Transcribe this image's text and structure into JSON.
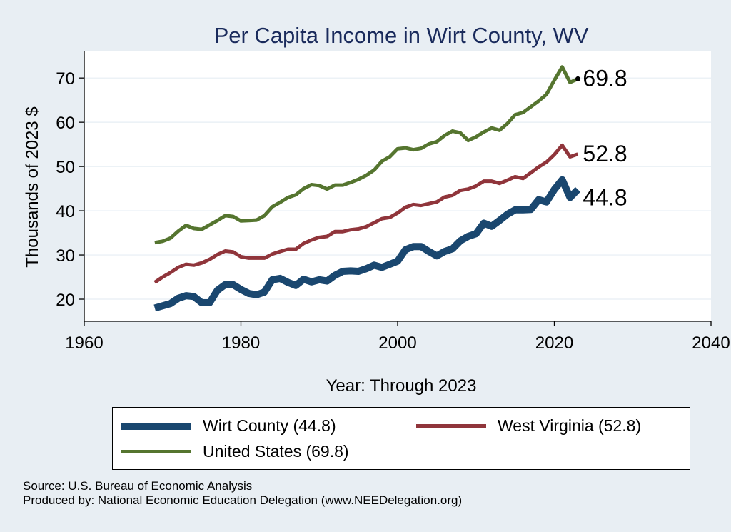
{
  "chart_data": {
    "type": "line",
    "title": "Per Capita Income in Wirt County, WV",
    "xlabel": "Year: Through 2023",
    "ylabel": "Thousands of 2023 $",
    "xlim": [
      1960,
      2040
    ],
    "ylim": [
      15,
      76
    ],
    "xticks": [
      1960,
      1980,
      2000,
      2020,
      2040
    ],
    "yticks": [
      20,
      30,
      40,
      50,
      60,
      70
    ],
    "grid": "horizontal",
    "x": [
      1969,
      1970,
      1971,
      1972,
      1973,
      1974,
      1975,
      1976,
      1977,
      1978,
      1979,
      1980,
      1981,
      1982,
      1983,
      1984,
      1985,
      1986,
      1987,
      1988,
      1989,
      1990,
      1991,
      1992,
      1993,
      1994,
      1995,
      1996,
      1997,
      1998,
      1999,
      2000,
      2001,
      2002,
      2003,
      2004,
      2005,
      2006,
      2007,
      2008,
      2009,
      2010,
      2011,
      2012,
      2013,
      2014,
      2015,
      2016,
      2017,
      2018,
      2019,
      2020,
      2021,
      2022,
      2023
    ],
    "series": [
      {
        "name": "Wirt County (44.8)",
        "color": "#1a476f",
        "width": 10,
        "end_label": "44.8",
        "values": [
          18.0,
          18.5,
          19.0,
          20.2,
          20.8,
          20.6,
          19.2,
          19.2,
          22.0,
          23.3,
          23.3,
          22.2,
          21.3,
          21.0,
          21.6,
          24.4,
          24.7,
          23.8,
          23.1,
          24.5,
          23.9,
          24.4,
          24.1,
          25.4,
          26.3,
          26.4,
          26.3,
          26.9,
          27.7,
          27.2,
          27.9,
          28.6,
          31.2,
          31.9,
          31.9,
          30.8,
          29.8,
          30.8,
          31.4,
          33.2,
          34.2,
          34.8,
          37.2,
          36.5,
          37.8,
          39.2,
          40.2,
          40.2,
          40.3,
          42.5,
          42.0,
          44.8,
          47.0,
          43.0,
          44.8
        ]
      },
      {
        "name": "West Virginia (52.8)",
        "color": "#90353b",
        "width": 5,
        "end_label": "52.8",
        "values": [
          23.8,
          25.0,
          26.0,
          27.2,
          27.9,
          27.7,
          28.2,
          29.0,
          30.1,
          30.9,
          30.7,
          29.6,
          29.3,
          29.3,
          29.3,
          30.2,
          30.8,
          31.3,
          31.3,
          32.6,
          33.4,
          34.0,
          34.2,
          35.3,
          35.3,
          35.7,
          35.9,
          36.4,
          37.3,
          38.2,
          38.5,
          39.5,
          40.8,
          41.4,
          41.2,
          41.6,
          42.0,
          43.1,
          43.5,
          44.6,
          44.9,
          45.6,
          46.7,
          46.7,
          46.2,
          46.9,
          47.7,
          47.3,
          48.6,
          49.9,
          51.0,
          52.7,
          54.8,
          52.2,
          52.8
        ]
      },
      {
        "name": "United States (69.8)",
        "color": "#55752f",
        "width": 5,
        "end_label": "69.8",
        "values": [
          32.8,
          33.1,
          33.8,
          35.4,
          36.7,
          36.0,
          35.8,
          36.8,
          37.8,
          38.9,
          38.7,
          37.7,
          37.8,
          37.9,
          38.9,
          40.9,
          41.9,
          43.0,
          43.6,
          45.0,
          45.9,
          45.7,
          44.9,
          45.8,
          45.8,
          46.4,
          47.1,
          48.0,
          49.2,
          51.2,
          52.2,
          54.0,
          54.2,
          53.8,
          54.1,
          55.1,
          55.6,
          57.0,
          58.0,
          57.6,
          55.9,
          56.7,
          57.8,
          58.7,
          58.2,
          59.7,
          61.7,
          62.2,
          63.5,
          64.8,
          66.3,
          69.5,
          72.5,
          69.0,
          69.8
        ]
      }
    ]
  },
  "legend": {
    "items": [
      {
        "label": "Wirt County (44.8)",
        "color": "#1a476f"
      },
      {
        "label": "West Virginia (52.8)",
        "color": "#90353b"
      },
      {
        "label": "United States (69.8)",
        "color": "#55752f"
      }
    ]
  },
  "footer": {
    "source": "Source: U.S. Bureau of Economic Analysis",
    "produced_by": "Produced by: National Economic Education Delegation (www.NEEDelegation.org)"
  }
}
